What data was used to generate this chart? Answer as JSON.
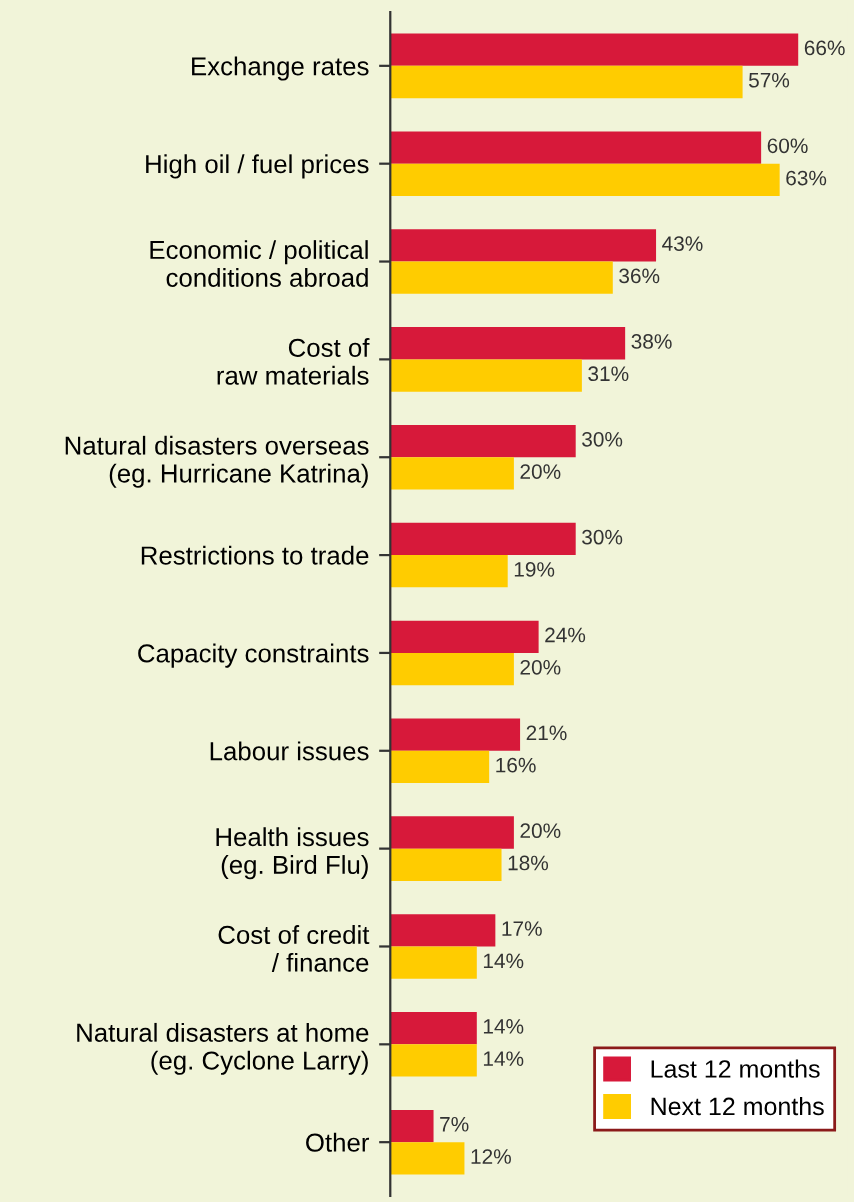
{
  "chart_data": {
    "type": "bar",
    "orientation": "horizontal",
    "categories": [
      "Exchange rates",
      "High oil / fuel prices",
      "Economic / political\nconditions abroad",
      "Cost of\nraw materials",
      "Natural disasters overseas\n(eg. Hurricane Katrina)",
      "Restrictions to trade",
      "Capacity constraints",
      "Labour issues",
      "Health issues\n(eg. Bird Flu)",
      "Cost of credit\n/ finance",
      "Natural disasters at home\n(eg. Cyclone Larry)",
      "Other"
    ],
    "series": [
      {
        "name": "Last 12 months",
        "color": "#d7193a",
        "values": [
          66,
          60,
          43,
          38,
          30,
          30,
          24,
          21,
          20,
          17,
          14,
          7
        ],
        "value_labels": [
          "66%",
          "60%",
          "43%",
          "38%",
          "30%",
          "30%",
          "24%",
          "21%",
          "20%",
          "17%",
          "14%",
          "7%"
        ]
      },
      {
        "name": "Next 12 months",
        "color": "#ffcc00",
        "values": [
          57,
          63,
          36,
          31,
          20,
          19,
          20,
          16,
          18,
          14,
          14,
          12
        ],
        "value_labels": [
          "57%",
          "63%",
          "36%",
          "31%",
          "20%",
          "19%",
          "20%",
          "16%",
          "18%",
          "14%",
          "14%",
          "12%"
        ]
      }
    ],
    "legend": "bottom right",
    "grid": false
  }
}
